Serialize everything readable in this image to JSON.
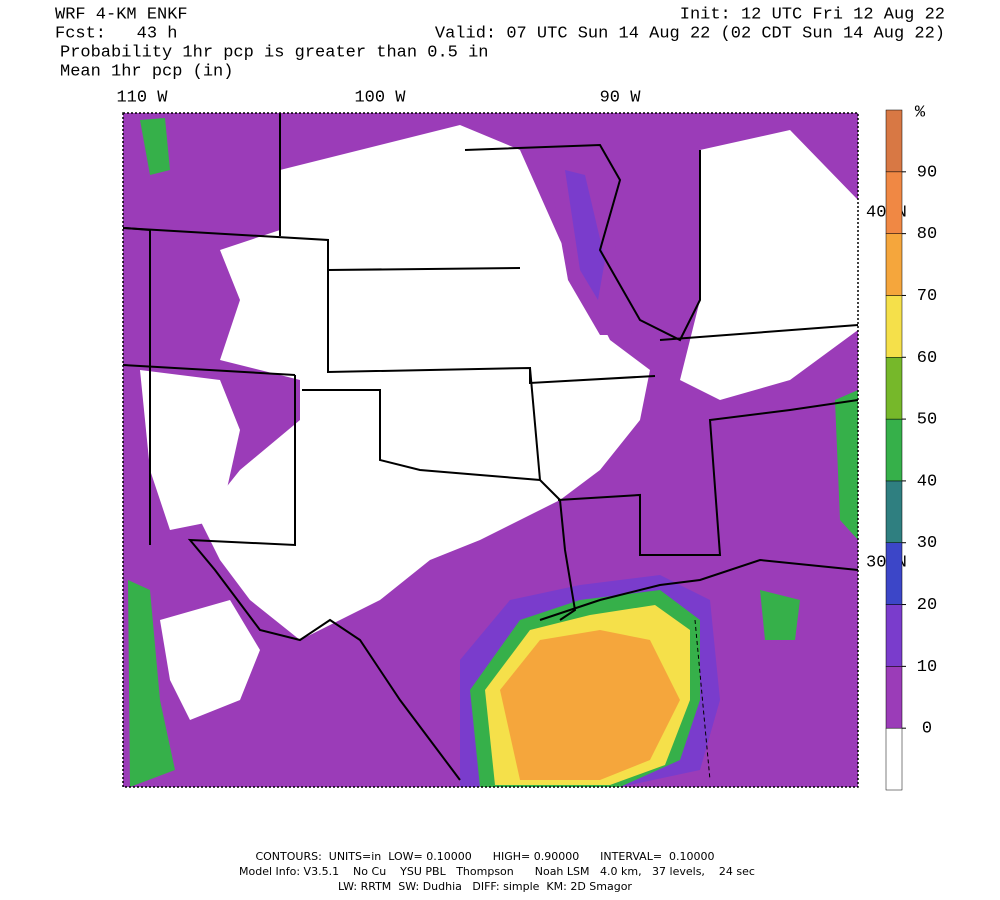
{
  "header": {
    "model": "WRF 4-KM ENKF",
    "init": "Init: 12 UTC Fri 12 Aug 22",
    "forecast": "Fcst:   43 h",
    "valid": "Valid: 07 UTC Sun 14 Aug 22 (02 CDT Sun 14 Aug 22)",
    "field1": "Probability 1hr pcp is greater than 0.5 in",
    "field2": "Mean 1hr pcp (in)"
  },
  "map": {
    "lon_labels": [
      "110 W",
      "100 W",
      "90 W"
    ],
    "lat_labels": [
      "40 N",
      "30 N"
    ]
  },
  "colorbar": {
    "unit": "%",
    "ticks": [
      0,
      10,
      20,
      30,
      40,
      50,
      60,
      70,
      80,
      90
    ],
    "colors": [
      "#ffffff",
      "#9b3cb8",
      "#7a3ccc",
      "#3c46c8",
      "#2f7f80",
      "#36b04a",
      "#76b82a",
      "#f5e04a",
      "#f5a63c",
      "#f08844",
      "#d87844"
    ]
  },
  "footer": {
    "contours": "CONTOURS:  UNITS=in  LOW= 0.10000      HIGH= 0.90000      INTERVAL=  0.10000",
    "model_info": "Model Info: V3.5.1    No Cu    YSU PBL   Thompson      Noah LSM   4.0 km,   37 levels,    24 sec",
    "physics": "LW: RRTM  SW: Dudhia   DIFF: simple  KM: 2D Smagor"
  }
}
